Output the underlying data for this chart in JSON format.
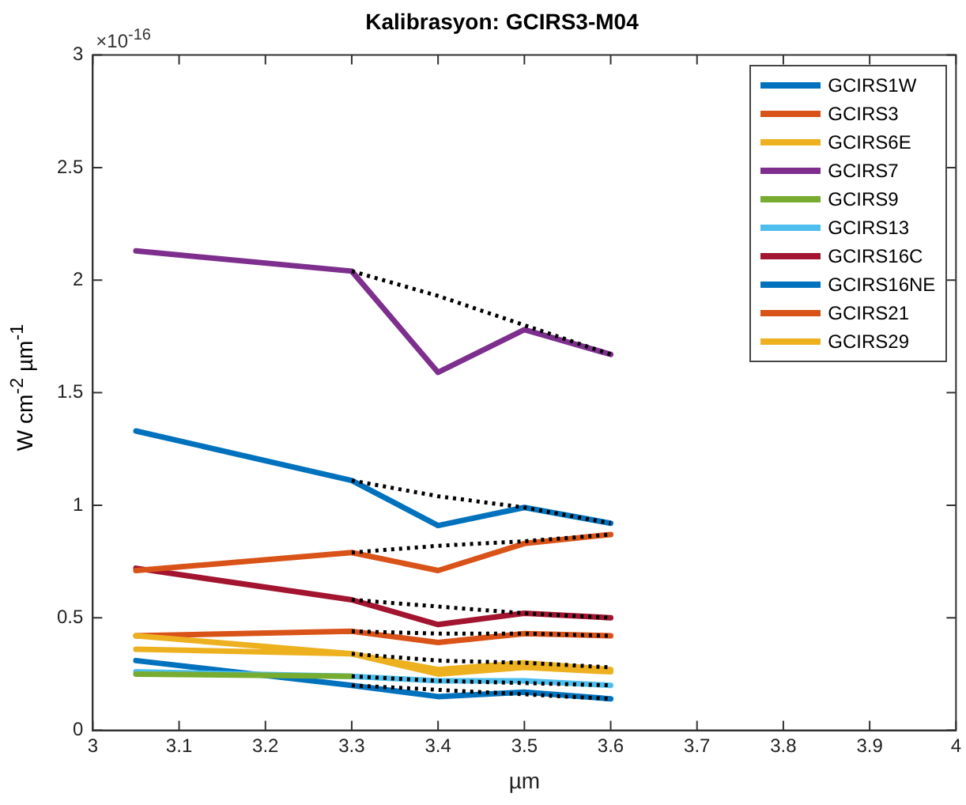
{
  "chart_data": {
    "type": "line",
    "title": "Kalibrasyon: GCIRS3-M04",
    "xlabel": "µm",
    "ylabel": "W cm$^{-2}$ µm$^{-1}$",
    "annotations": [
      "×10$^{-16}$"
    ],
    "x": [
      3.05,
      3.3,
      3.4,
      3.5,
      3.6
    ],
    "xlim": [
      3,
      4
    ],
    "xticks": [
      3,
      3.1,
      3.2,
      3.3,
      3.4,
      3.5,
      3.6,
      3.7,
      3.8,
      3.9,
      4
    ],
    "ylim": [
      0,
      3
    ],
    "yticks": [
      0,
      0.5,
      1,
      1.5,
      2,
      2.5,
      3
    ],
    "grid": false,
    "legend": "top right",
    "marker": "none",
    "line_style": "solid",
    "series": [
      {
        "name": "GCIRS1W",
        "color": "#0072bd",
        "values": [
          1.33,
          1.11,
          0.91,
          0.99,
          0.92
        ]
      },
      {
        "name": "GCIRS3",
        "color": "#d95319",
        "values": [
          0.71,
          0.79,
          0.71,
          0.83,
          0.87
        ]
      },
      {
        "name": "GCIRS6E",
        "color": "#edb120",
        "values": [
          0.42,
          0.34,
          0.27,
          0.3,
          0.27
        ]
      },
      {
        "name": "GCIRS7",
        "color": "#7e2f8e",
        "values": [
          2.13,
          2.04,
          1.59,
          1.78,
          1.67
        ]
      },
      {
        "name": "GCIRS9",
        "color": "#77ac30",
        "values": [
          0.25,
          0.24,
          null,
          null,
          null
        ]
      },
      {
        "name": "GCIRS13",
        "color": "#4dbeee",
        "values": [
          0.26,
          0.24,
          0.22,
          0.22,
          0.2
        ]
      },
      {
        "name": "GCIRS16C",
        "color": "#a2142f",
        "values": [
          0.72,
          0.58,
          0.47,
          0.52,
          0.5
        ]
      },
      {
        "name": "GCIRS16NE",
        "color": "#0072bd",
        "values": [
          0.31,
          0.2,
          0.15,
          0.17,
          0.14
        ]
      },
      {
        "name": "GCIRS21",
        "color": "#d95319",
        "values": [
          0.42,
          0.44,
          0.39,
          0.43,
          0.42
        ]
      },
      {
        "name": "GCIRS29",
        "color": "#edb120",
        "values": [
          0.36,
          0.34,
          0.25,
          0.28,
          0.26
        ]
      },
      {
        "color": "#000000",
        "line_style": "dotted",
        "x": [
          3.3,
          3.4,
          3.5,
          3.6
        ],
        "values": [
          2.04,
          1.93,
          1.8,
          1.67
        ]
      },
      {
        "color": "#000000",
        "line_style": "dotted",
        "x": [
          3.3,
          3.4,
          3.5,
          3.6
        ],
        "values": [
          1.11,
          1.04,
          0.99,
          0.92
        ]
      },
      {
        "color": "#000000",
        "line_style": "dotted",
        "x": [
          3.3,
          3.4,
          3.5,
          3.6
        ],
        "values": [
          0.79,
          0.82,
          0.84,
          0.87
        ]
      },
      {
        "color": "#000000",
        "line_style": "dotted",
        "x": [
          3.3,
          3.4,
          3.5,
          3.6
        ],
        "values": [
          0.58,
          0.55,
          0.52,
          0.5
        ]
      },
      {
        "color": "#000000",
        "line_style": "dotted",
        "x": [
          3.3,
          3.4,
          3.5,
          3.6
        ],
        "values": [
          0.44,
          0.43,
          0.43,
          0.42
        ]
      },
      {
        "color": "#000000",
        "line_style": "dotted",
        "x": [
          3.3,
          3.4,
          3.5,
          3.6
        ],
        "values": [
          0.34,
          0.31,
          0.3,
          0.28
        ]
      },
      {
        "color": "#000000",
        "line_style": "dotted",
        "x": [
          3.3,
          3.4,
          3.5,
          3.6
        ],
        "values": [
          0.24,
          0.22,
          0.21,
          0.2
        ]
      },
      {
        "color": "#000000",
        "line_style": "dotted",
        "x": [
          3.3,
          3.4,
          3.5,
          3.6
        ],
        "values": [
          0.2,
          0.18,
          0.16,
          0.14
        ]
      }
    ]
  }
}
